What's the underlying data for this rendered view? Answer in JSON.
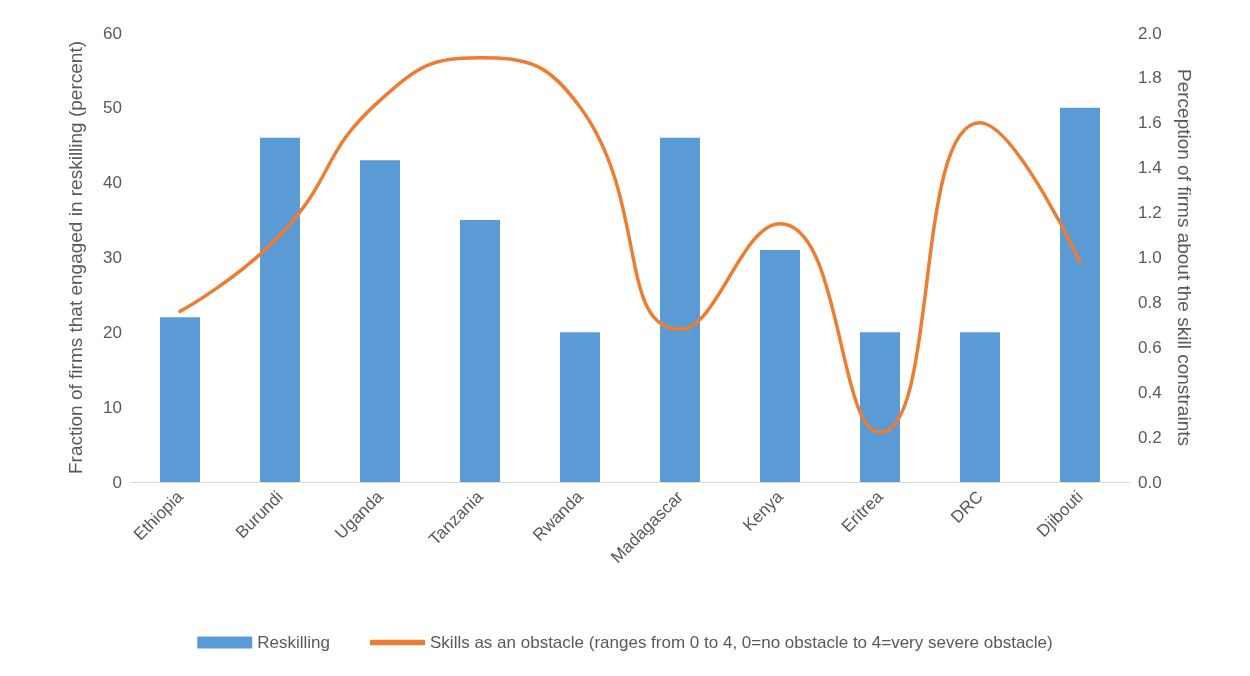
{
  "chart_data": {
    "type": "bar",
    "ylabel": "Fraction of firms that engaged in reskilling (percent)",
    "y2label": "Perception of firms about the skill constraints",
    "categories": [
      "Ethiopia",
      "Burundi",
      "Uganda",
      "Tanzania",
      "Rwanda",
      "Madagascar",
      "Kenya",
      "Eritrea",
      "DRC",
      "Djibouti"
    ],
    "series": [
      {
        "name": "Reskilling",
        "color": "#5b9bd5",
        "values": [
          22,
          46,
          43,
          35,
          20,
          46,
          31,
          20,
          20,
          50
        ]
      },
      {
        "name": "Skills as an obstacle (ranges from 0 to 4, 0=no obstacle to 4=very severe obstacle)",
        "type": "line",
        "axis": "y2",
        "color": "#ed7d31",
        "values": [
          0.76,
          1.1,
          1.7,
          1.89,
          1.67,
          0.68,
          1.15,
          0.22,
          1.6,
          0.98
        ]
      }
    ],
    "ylim": [
      0,
      60
    ],
    "yticks": [
      0,
      10,
      20,
      30,
      40,
      50,
      60
    ],
    "y2lim": [
      0,
      2
    ],
    "y2ticks": [
      {
        "value": 0,
        "label": "0.0"
      },
      {
        "value": 0.2,
        "label": "0.2"
      },
      {
        "value": 0.4,
        "label": "0.4"
      },
      {
        "value": 0.6,
        "label": "0.6"
      },
      {
        "value": 0.8,
        "label": "0.8"
      },
      {
        "value": 1,
        "label": "1.0"
      },
      {
        "value": 1.2,
        "label": "1.2"
      },
      {
        "value": 1.4,
        "label": "1.4"
      },
      {
        "value": 1.6,
        "label": "1.6"
      },
      {
        "value": 1.8,
        "label": "1.8"
      },
      {
        "value": 2,
        "label": "2.0"
      }
    ],
    "grid": false,
    "legend": "bottom",
    "marker": "none",
    "line_style": "solid"
  }
}
